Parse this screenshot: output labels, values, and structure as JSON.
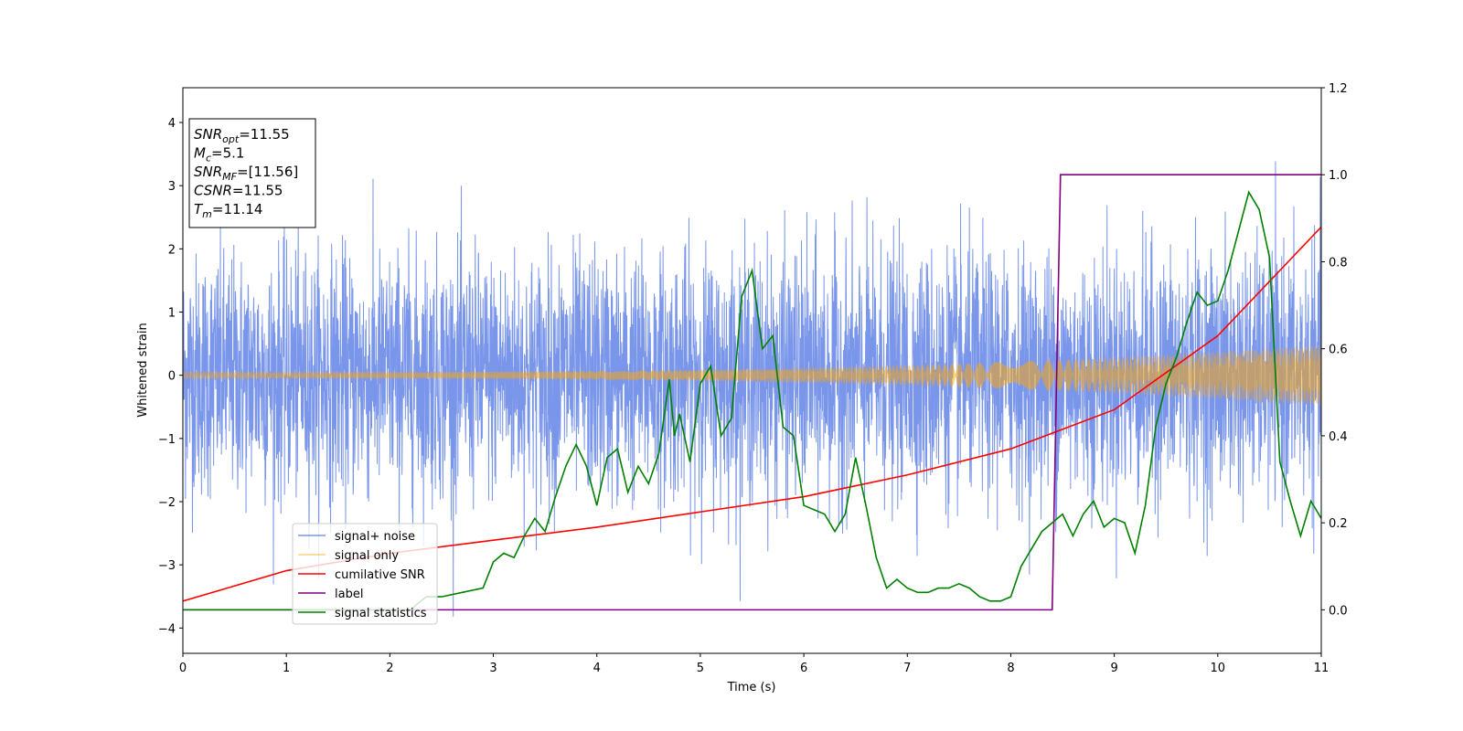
{
  "chart_data": {
    "type": "line",
    "xlabel": "Time (s)",
    "ylabel": "Whitened strain",
    "xlim": [
      0,
      11
    ],
    "ylim_left": [
      -4.4,
      4.55
    ],
    "ylim_right": [
      -0.1,
      1.2
    ],
    "x_ticks": [
      0,
      1,
      2,
      3,
      4,
      5,
      6,
      7,
      8,
      9,
      10,
      11
    ],
    "y_ticks_left": [
      -4,
      -3,
      -2,
      -1,
      0,
      1,
      2,
      3,
      4
    ],
    "y_ticks_right": [
      0.0,
      0.2,
      0.4,
      0.6,
      0.8,
      1.0,
      1.2
    ],
    "info_box": [
      {
        "base": "SNR",
        "sub": "opt",
        "value": "=11.55"
      },
      {
        "base": "M",
        "sub": "c",
        "value": "=5.1"
      },
      {
        "base": "SNR",
        "sub": "MF",
        "value": "=[11.56]"
      },
      {
        "base": "CSNR",
        "sub": "",
        "value": "=11.55"
      },
      {
        "base": "T",
        "sub": "m",
        "value": "=11.14"
      }
    ],
    "series": [
      {
        "name": "signal+ noise",
        "color": "#4169e1",
        "axis": "left",
        "kind": "noise",
        "std": 0.95,
        "spike_max": 4.15
      },
      {
        "name": "signal only",
        "color": "#ffa500",
        "axis": "left",
        "kind": "chirp",
        "amplitude_start": 0.05,
        "amplitude_end": 0.48
      },
      {
        "name": "cumilative SNR",
        "color": "#ff0000",
        "axis": "right",
        "x": [
          0,
          1,
          2,
          3,
          4,
          5,
          6,
          7,
          8,
          9,
          10,
          11
        ],
        "y": [
          0.02,
          0.09,
          0.13,
          0.16,
          0.19,
          0.225,
          0.26,
          0.31,
          0.37,
          0.46,
          0.63,
          0.88
        ]
      },
      {
        "name": "label",
        "color": "#800080",
        "axis": "right",
        "x": [
          0,
          8.4,
          8.48,
          11
        ],
        "y": [
          0,
          0,
          1,
          1
        ]
      },
      {
        "name": "signal statistics",
        "color": "#008000",
        "axis": "right",
        "x": [
          0,
          2.2,
          2.35,
          2.5,
          2.7,
          2.9,
          3.0,
          3.1,
          3.2,
          3.3,
          3.4,
          3.5,
          3.6,
          3.7,
          3.8,
          3.9,
          4.0,
          4.1,
          4.2,
          4.3,
          4.4,
          4.5,
          4.6,
          4.7,
          4.75,
          4.8,
          4.9,
          5.0,
          5.1,
          5.2,
          5.3,
          5.4,
          5.5,
          5.6,
          5.7,
          5.8,
          5.9,
          6.0,
          6.1,
          6.2,
          6.3,
          6.4,
          6.5,
          6.6,
          6.7,
          6.8,
          6.9,
          7.0,
          7.1,
          7.2,
          7.3,
          7.4,
          7.5,
          7.6,
          7.7,
          7.8,
          7.9,
          8.0,
          8.1,
          8.2,
          8.3,
          8.4,
          8.5,
          8.6,
          8.7,
          8.8,
          8.9,
          9.0,
          9.1,
          9.2,
          9.3,
          9.4,
          9.5,
          9.6,
          9.7,
          9.8,
          9.9,
          10.0,
          10.1,
          10.2,
          10.3,
          10.4,
          10.5,
          10.6,
          10.7,
          10.8,
          10.9,
          11.0
        ],
        "y": [
          0.0,
          0.0,
          0.03,
          0.03,
          0.04,
          0.05,
          0.11,
          0.13,
          0.12,
          0.17,
          0.21,
          0.18,
          0.26,
          0.33,
          0.38,
          0.33,
          0.24,
          0.35,
          0.37,
          0.27,
          0.33,
          0.29,
          0.36,
          0.53,
          0.4,
          0.45,
          0.34,
          0.52,
          0.56,
          0.4,
          0.44,
          0.72,
          0.78,
          0.6,
          0.63,
          0.42,
          0.4,
          0.24,
          0.23,
          0.22,
          0.18,
          0.22,
          0.35,
          0.24,
          0.12,
          0.05,
          0.07,
          0.05,
          0.04,
          0.04,
          0.05,
          0.05,
          0.06,
          0.05,
          0.03,
          0.02,
          0.02,
          0.03,
          0.1,
          0.14,
          0.18,
          0.2,
          0.22,
          0.17,
          0.22,
          0.25,
          0.19,
          0.21,
          0.2,
          0.13,
          0.24,
          0.42,
          0.52,
          0.58,
          0.66,
          0.73,
          0.7,
          0.71,
          0.78,
          0.87,
          0.96,
          0.92,
          0.81,
          0.34,
          0.25,
          0.17,
          0.25,
          0.21
        ]
      }
    ],
    "legend_position": "lower-left"
  }
}
